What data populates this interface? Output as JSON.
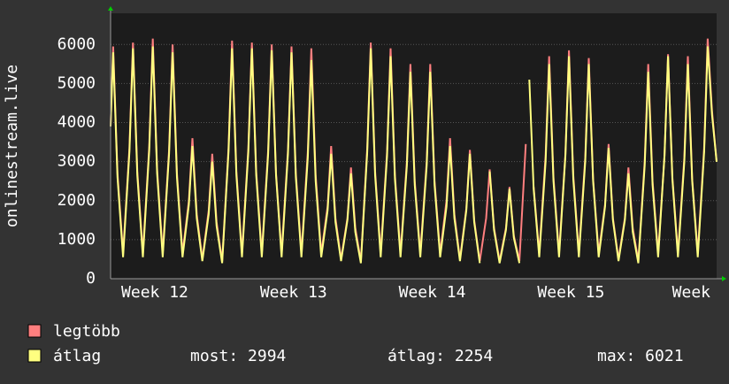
{
  "chart_data": {
    "type": "line",
    "ylabel": "onlinestream.live",
    "xlim": [
      0,
      30.58
    ],
    "xticks": [
      {
        "value": 2.23,
        "label": "Week 12"
      },
      {
        "value": 9.23,
        "label": "Week 13"
      },
      {
        "value": 16.23,
        "label": "Week 14"
      },
      {
        "value": 23.23,
        "label": "Week 15"
      },
      {
        "value": 29.3,
        "label": "Week"
      }
    ],
    "ylim": [
      0,
      6800
    ],
    "yticks": [
      0,
      1000,
      2000,
      3000,
      4000,
      5000,
      6000
    ],
    "grid": true,
    "x": [
      0,
      0.13,
      0.35,
      0.63,
      0.95,
      1.13,
      1.35,
      1.63,
      1.95,
      2.13,
      2.35,
      2.63,
      2.95,
      3.13,
      3.35,
      3.63,
      3.95,
      4.13,
      4.35,
      4.63,
      4.95,
      5.13,
      5.35,
      5.63,
      5.95,
      6.13,
      6.35,
      6.63,
      6.95,
      7.13,
      7.35,
      7.63,
      7.95,
      8.13,
      8.35,
      8.63,
      8.95,
      9.13,
      9.35,
      9.63,
      9.95,
      10.13,
      10.35,
      10.63,
      10.95,
      11.13,
      11.35,
      11.63,
      11.95,
      12.13,
      12.35,
      12.63,
      12.95,
      13.13,
      13.35,
      13.63,
      13.95,
      14.13,
      14.35,
      14.63,
      14.95,
      15.13,
      15.35,
      15.63,
      15.95,
      16.13,
      16.35,
      16.63,
      16.95,
      17.13,
      17.35,
      17.63,
      17.95,
      18.13,
      18.35,
      18.63,
      18.95,
      19.13,
      19.35,
      19.63,
      19.95,
      20.13,
      20.35,
      20.63,
      20.95,
      21.13,
      21.35,
      21.63,
      21.95,
      22.13,
      22.35,
      22.63,
      22.95,
      23.13,
      23.35,
      23.63,
      23.95,
      24.13,
      24.35,
      24.63,
      24.95,
      25.13,
      25.35,
      25.63,
      25.95,
      26.13,
      26.35,
      26.63,
      26.95,
      27.13,
      27.35,
      27.63,
      27.95,
      28.13,
      28.35,
      28.63,
      28.95,
      29.13,
      29.35,
      29.63,
      29.95,
      30.13,
      30.35,
      30.58
    ],
    "series": [
      {
        "name": "legtöbb",
        "color": "#ff7f7f",
        "values": [
          3900,
          5950,
          2700,
          650,
          3350,
          6050,
          2750,
          650,
          3400,
          6150,
          2800,
          650,
          3300,
          6000,
          2700,
          650,
          2000,
          3600,
          1650,
          500,
          1750,
          3200,
          1450,
          450,
          3350,
          6100,
          2750,
          650,
          3350,
          6050,
          2750,
          650,
          3300,
          6000,
          2700,
          650,
          3300,
          5950,
          2700,
          650,
          3250,
          5900,
          2650,
          650,
          1850,
          3400,
          1550,
          500,
          1550,
          2850,
          1300,
          450,
          3350,
          6050,
          2750,
          650,
          3250,
          5900,
          2650,
          650,
          3000,
          5500,
          2500,
          650,
          3000,
          5500,
          2500,
          650,
          2000,
          3600,
          1650,
          500,
          1800,
          3300,
          1500,
          450,
          1550,
          2800,
          1300,
          450,
          1300,
          2350,
          1100,
          450,
          3450,
          null,
          2350,
          650,
          3150,
          5700,
          2600,
          650,
          3200,
          5850,
          2650,
          650,
          3100,
          5650,
          2550,
          650,
          1900,
          3450,
          1550,
          500,
          1550,
          2850,
          1300,
          450,
          3000,
          5500,
          2500,
          650,
          3150,
          5750,
          2600,
          650,
          3100,
          5700,
          2550,
          650,
          3350,
          6150,
          4300,
          3000
        ]
      },
      {
        "name": "átlag",
        "color": "#ffff80",
        "values": [
          3900,
          5800,
          2600,
          550,
          3250,
          5900,
          2650,
          550,
          3300,
          5950,
          2700,
          550,
          3200,
          5800,
          2600,
          550,
          1900,
          3400,
          1550,
          450,
          1650,
          3000,
          1350,
          400,
          3250,
          5900,
          2650,
          550,
          3250,
          5900,
          2650,
          550,
          3200,
          5850,
          2650,
          550,
          3200,
          5800,
          2600,
          550,
          3100,
          5600,
          2500,
          550,
          1750,
          3200,
          1450,
          450,
          1500,
          2700,
          1200,
          400,
          3250,
          5900,
          2650,
          550,
          3150,
          5700,
          2550,
          550,
          2900,
          5300,
          2400,
          550,
          2900,
          5300,
          2400,
          550,
          1850,
          3400,
          1550,
          450,
          1750,
          3200,
          1450,
          400,
          null,
          2750,
          1250,
          400,
          1250,
          2300,
          1050,
          400,
          null,
          5100,
          2300,
          550,
          3000,
          5500,
          2500,
          550,
          3150,
          5700,
          2550,
          550,
          3000,
          5500,
          2500,
          550,
          1850,
          3350,
          1500,
          450,
          1500,
          2700,
          1200,
          400,
          2900,
          5300,
          2400,
          550,
          3150,
          5700,
          2550,
          550,
          3000,
          5500,
          2500,
          550,
          3250,
          5950,
          4200,
          2994
        ]
      }
    ],
    "stats": [
      "most: 2994",
      "átlag: 2254",
      "max: 6021"
    ]
  }
}
